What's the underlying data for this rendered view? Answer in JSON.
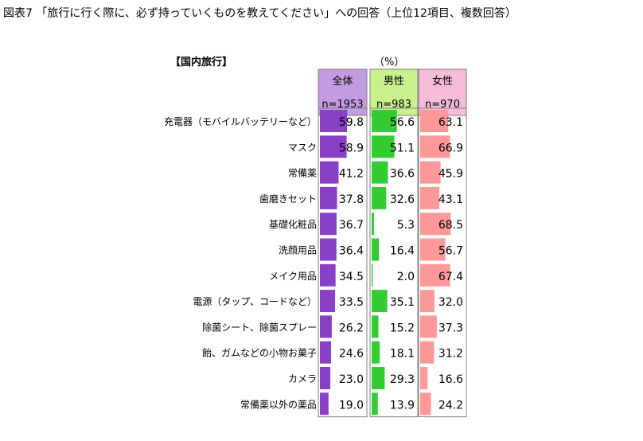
{
  "title": "図表7 「旅行に行く際に、必ず持っていくものを教えてください」への回答（上位12項目、複数回答）",
  "section_label": "【国内旅行】",
  "unit_label": "（%）",
  "colors": {
    "col_header": [
      "#c39be0",
      "#c8f08c",
      "#f6bcd8"
    ],
    "bar": [
      "#8a3fc7",
      "#33cc33",
      "#ff9999"
    ],
    "border": "#7f7f7f"
  },
  "chart_data": {
    "type": "bar",
    "title": "図表7 「旅行に行く際に、必ず持っていくものを教えてください」への回答（上位12項目、複数回答）",
    "unit": "%",
    "xlim": [
      0,
      100
    ],
    "categories": [
      "充電器（モバイルバッテリーなど）",
      "マスク",
      "常備薬",
      "歯磨きセット",
      "基礎化粧品",
      "洗顔用品",
      "メイク用品",
      "電源（タップ、コードなど）",
      "除菌シート、除菌スプレー",
      "飴、ガムなどの小物お菓子",
      "カメラ",
      "常備薬以外の薬品"
    ],
    "series": [
      {
        "name": "全体",
        "n": "n=1953",
        "values": [
          59.8,
          58.9,
          41.2,
          37.8,
          36.7,
          36.4,
          34.5,
          33.5,
          26.2,
          24.6,
          23.0,
          19.0
        ]
      },
      {
        "name": "男性",
        "n": "n=983",
        "values": [
          56.6,
          51.1,
          36.6,
          32.6,
          5.3,
          16.4,
          2.0,
          35.1,
          15.2,
          18.1,
          29.3,
          13.9
        ]
      },
      {
        "name": "女性",
        "n": "n=970",
        "values": [
          63.1,
          66.9,
          45.9,
          43.1,
          68.5,
          56.7,
          67.4,
          32.0,
          37.3,
          31.2,
          16.6,
          24.2
        ]
      }
    ]
  }
}
